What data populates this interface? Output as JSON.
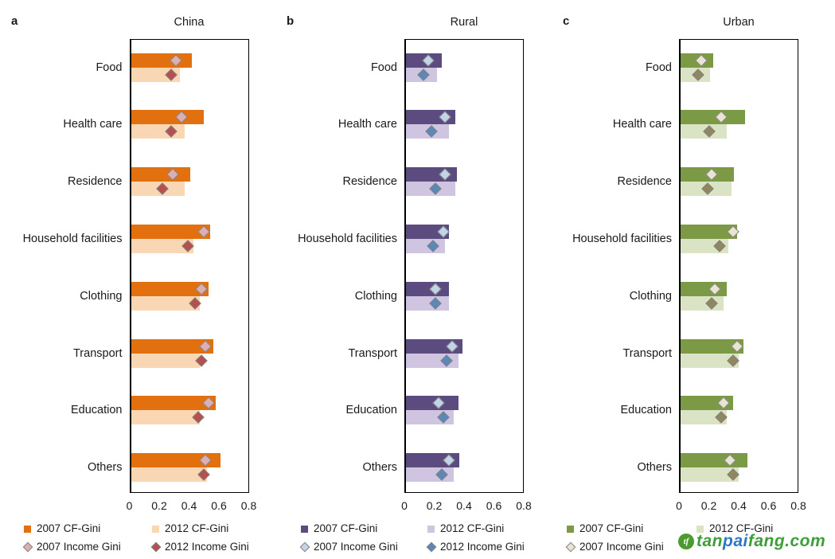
{
  "figure": {
    "background": "#ffffff",
    "axis_color": "#000000",
    "marker_stroke": "#828282",
    "legend_position": "below"
  },
  "chart_data": [
    {
      "type": "bar",
      "orientation": "horizontal",
      "panel_letter": "a",
      "title": "China",
      "xlim": [
        0,
        0.8
      ],
      "x_ticks": [
        0,
        0.2,
        0.4,
        0.6,
        0.8
      ],
      "x_tick_labels": [
        "0",
        "0.2",
        "0.4",
        "0.6",
        "0.8"
      ],
      "categories": [
        "Food",
        "Health care",
        "Residence",
        "Household facilities",
        "Clothing",
        "Transport",
        "Education",
        "Others"
      ],
      "series": [
        {
          "name": "2007 CF-Gini",
          "marker": "bar",
          "color": "#E2700E",
          "values": [
            0.42,
            0.5,
            0.41,
            0.54,
            0.53,
            0.56,
            0.58,
            0.61
          ]
        },
        {
          "name": "2012 CF-Gini",
          "marker": "bar",
          "color": "#FAD7B4",
          "values": [
            0.34,
            0.37,
            0.37,
            0.43,
            0.47,
            0.47,
            0.47,
            0.52
          ]
        },
        {
          "name": "2007 Income Gini",
          "marker": "diamond",
          "color": "#DFAEB2",
          "values": [
            0.31,
            0.35,
            0.29,
            0.5,
            0.48,
            0.51,
            0.53,
            0.51
          ]
        },
        {
          "name": "2012 Income Gini",
          "marker": "diamond",
          "color": "#B5504E",
          "values": [
            0.28,
            0.28,
            0.22,
            0.39,
            0.44,
            0.48,
            0.46,
            0.5
          ]
        }
      ]
    },
    {
      "type": "bar",
      "orientation": "horizontal",
      "panel_letter": "b",
      "title": "Rural",
      "xlim": [
        0,
        0.8
      ],
      "x_ticks": [
        0,
        0.2,
        0.4,
        0.6,
        0.8
      ],
      "x_tick_labels": [
        "0",
        "0.2",
        "0.4",
        "0.6",
        "0.8"
      ],
      "categories": [
        "Food",
        "Health care",
        "Residence",
        "Household facilities",
        "Clothing",
        "Transport",
        "Education",
        "Others"
      ],
      "series": [
        {
          "name": "2007 CF-Gini",
          "marker": "bar",
          "color": "#5C4B7E",
          "values": [
            0.25,
            0.34,
            0.35,
            0.3,
            0.3,
            0.39,
            0.36,
            0.37
          ]
        },
        {
          "name": "2012 CF-Gini",
          "marker": "bar",
          "color": "#CFC5E1",
          "values": [
            0.22,
            0.3,
            0.34,
            0.27,
            0.3,
            0.36,
            0.33,
            0.33
          ]
        },
        {
          "name": "2007 Income Gini",
          "marker": "diamond",
          "color": "#C2D4E8",
          "values": [
            0.16,
            0.27,
            0.27,
            0.26,
            0.21,
            0.32,
            0.23,
            0.3
          ]
        },
        {
          "name": "2012 Income Gini",
          "marker": "diamond",
          "color": "#5C88B8",
          "values": [
            0.13,
            0.18,
            0.21,
            0.19,
            0.21,
            0.28,
            0.26,
            0.25
          ]
        }
      ]
    },
    {
      "type": "bar",
      "orientation": "horizontal",
      "panel_letter": "c",
      "title": "Urban",
      "xlim": [
        0,
        0.8
      ],
      "x_ticks": [
        0,
        0.2,
        0.4,
        0.6,
        0.8
      ],
      "x_tick_labels": [
        "0",
        "0.2",
        "0.4",
        "0.6",
        "0.8"
      ],
      "categories": [
        "Food",
        "Health care",
        "Residence",
        "Household facilities",
        "Clothing",
        "Transport",
        "Education",
        "Others"
      ],
      "series": [
        {
          "name": "2007 CF-Gini",
          "marker": "bar",
          "color": "#7C9A45",
          "values": [
            0.23,
            0.44,
            0.37,
            0.39,
            0.32,
            0.43,
            0.36,
            0.46
          ]
        },
        {
          "name": "2012 CF-Gini",
          "marker": "bar",
          "color": "#DAE4C4",
          "values": [
            0.21,
            0.32,
            0.35,
            0.33,
            0.3,
            0.4,
            0.32,
            0.4
          ]
        },
        {
          "name": "2007 Income Gini",
          "marker": "diamond",
          "color": "#E9E5D1",
          "values": [
            0.15,
            0.28,
            0.22,
            0.36,
            0.24,
            0.39,
            0.3,
            0.34
          ]
        },
        {
          "name": "2012 Income Gini",
          "marker": "diamond",
          "color": "#90865F",
          "values": [
            0.13,
            0.2,
            0.19,
            0.27,
            0.22,
            0.36,
            0.28,
            0.36
          ]
        }
      ]
    }
  ],
  "watermark": {
    "icon_text": "tf",
    "icon_color": "#4C9B31",
    "text_parts": [
      {
        "text": "tan",
        "color": "#3E9E37"
      },
      {
        "text": "pai",
        "color": "#2A77C5"
      },
      {
        "text": "fang",
        "color": "#3E9E37"
      },
      {
        "text": ".com",
        "color": "#3E9E37"
      }
    ]
  }
}
